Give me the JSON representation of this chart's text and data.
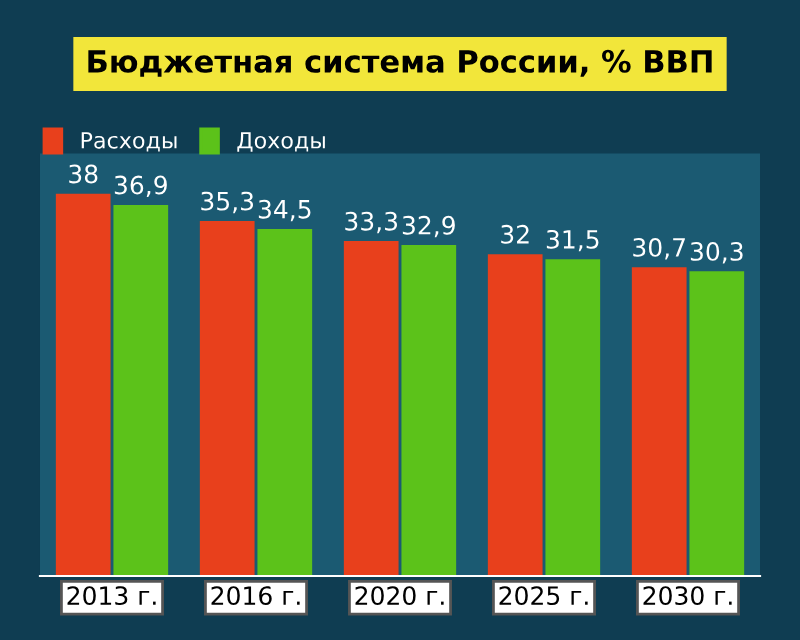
{
  "chart_data": {
    "type": "bar",
    "title": "Бюджетная система России, % ВВП",
    "categories": [
      "2013 г.",
      "2016 г.",
      "2020 г.",
      "2025 г.",
      "2030 г."
    ],
    "series": [
      {
        "name": "Расходы",
        "color": "#e8401c",
        "values": [
          38,
          35.3,
          33.3,
          32,
          30.7
        ],
        "value_labels": [
          "38",
          "35,3",
          "33,3",
          "32",
          "30,7"
        ]
      },
      {
        "name": "Доходы",
        "color": "#5cc21a",
        "values": [
          36.9,
          34.5,
          32.9,
          31.5,
          30.3
        ],
        "value_labels": [
          "36,9",
          "34,5",
          "32,9",
          "31,5",
          "30,3"
        ]
      }
    ],
    "ylim": [
      0,
      42
    ],
    "tick_labels": "x",
    "legend": "top left"
  }
}
